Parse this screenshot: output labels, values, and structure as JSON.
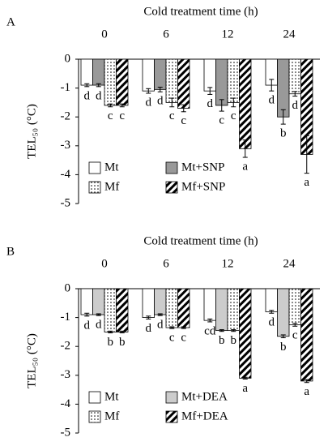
{
  "chart_data": [
    {
      "type": "bar",
      "panel": "A",
      "title": "Cold treatment time (h)",
      "ylabel": "TEL₅₀ (°C)",
      "categories": [
        "0",
        "6",
        "12",
        "24"
      ],
      "ylim": [
        -5,
        0
      ],
      "yticks": [
        0,
        -1,
        -2,
        -3,
        -4,
        -5
      ],
      "legend": "lower left",
      "series": [
        {
          "name": "Mt",
          "color": "#ffffff",
          "values": [
            -0.9,
            -1.1,
            -1.1,
            -0.9
          ],
          "errors": [
            0.05,
            0.08,
            0.12,
            0.2
          ],
          "letters": [
            "d",
            "d",
            "d",
            "d"
          ]
        },
        {
          "name": "Mt+SNP",
          "color": "#999999",
          "values": [
            -0.9,
            -1.05,
            -1.6,
            -2.0
          ],
          "errors": [
            0.05,
            0.08,
            0.2,
            0.25
          ],
          "letters": [
            "d",
            "d",
            "c",
            "b"
          ]
        },
        {
          "name": "Mf",
          "color": "#ffffff",
          "pattern": "dots",
          "values": [
            -1.6,
            -1.5,
            -1.5,
            -1.2
          ],
          "errors": [
            0.05,
            0.15,
            0.15,
            0.08
          ],
          "letters": [
            "c",
            "c",
            "c",
            "d"
          ]
        },
        {
          "name": "Mf+SNP",
          "color": "#000000",
          "pattern": "hatch",
          "values": [
            -1.6,
            -1.7,
            -3.1,
            -3.3
          ],
          "errors": [
            0.05,
            0.12,
            0.3,
            0.65
          ],
          "letters": [
            "c",
            "c",
            "a",
            "a"
          ]
        }
      ]
    },
    {
      "type": "bar",
      "panel": "B",
      "title": "Cold treatment time (h)",
      "ylabel": "TEL₅₀ (°C)",
      "categories": [
        "0",
        "6",
        "12",
        "24"
      ],
      "ylim": [
        -5,
        0
      ],
      "yticks": [
        0,
        -1,
        -2,
        -3,
        -4,
        -5
      ],
      "legend": "lower left",
      "series": [
        {
          "name": "Mt",
          "color": "#ffffff",
          "values": [
            -0.9,
            -1.0,
            -1.1,
            -0.8
          ],
          "errors": [
            0.05,
            0.05,
            0.05,
            0.05
          ],
          "letters": [
            "d",
            "d",
            "cd",
            "d"
          ]
        },
        {
          "name": "Mt+DEA",
          "color": "#cccccc",
          "values": [
            -0.9,
            -0.9,
            -1.45,
            -1.65
          ],
          "errors": [
            0.03,
            0.03,
            0.03,
            0.05
          ],
          "letters": [
            "d",
            "d",
            "b",
            "b"
          ]
        },
        {
          "name": "Mf",
          "color": "#ffffff",
          "pattern": "dots",
          "values": [
            -1.5,
            -1.35,
            -1.45,
            -1.25
          ],
          "errors": [
            0.03,
            0.03,
            0.03,
            0.05
          ],
          "letters": [
            "b",
            "c",
            "b",
            "c"
          ]
        },
        {
          "name": "Mf+DEA",
          "color": "#000000",
          "pattern": "hatch",
          "values": [
            -1.5,
            -1.35,
            -3.1,
            -3.2
          ],
          "errors": [
            0.03,
            0.03,
            0.03,
            0.05
          ],
          "letters": [
            "b",
            "c",
            "a",
            "a"
          ]
        }
      ]
    }
  ]
}
